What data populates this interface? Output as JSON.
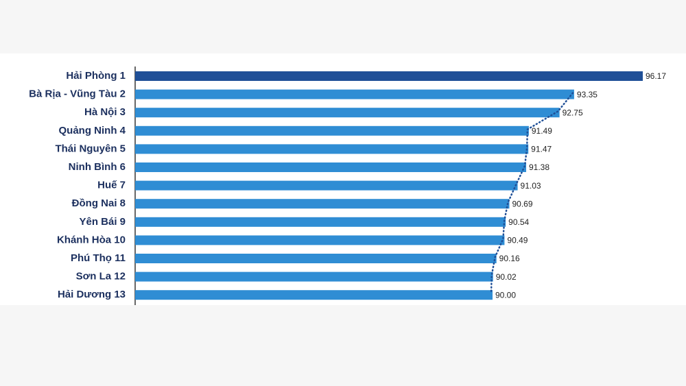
{
  "chart_data": {
    "type": "bar",
    "orientation": "horizontal",
    "categories": [
      "Hải Phòng  1",
      "Bà Rịa - Vũng Tàu  2",
      "Hà Nội  3",
      "Quảng Ninh  4",
      "Thái Nguyên  5",
      "Ninh Bình  6",
      "Huế  7",
      "Đồng Nai  8",
      "Yên Bái  9",
      "Khánh Hòa  10",
      "Phú Thọ 11",
      "Sơn La 12",
      "Hải Dương 13"
    ],
    "values": [
      96.17,
      93.35,
      92.75,
      91.49,
      91.47,
      91.38,
      91.03,
      90.69,
      90.54,
      90.49,
      90.16,
      90.02,
      90.0
    ],
    "value_labels": [
      "96.17",
      "93.35",
      "92.75",
      "91.49",
      "91.47",
      "91.38",
      "91.03",
      "90.69",
      "90.54",
      "90.49",
      "90.16",
      "90.02",
      "90.00"
    ],
    "colors": [
      "#1f4f97",
      "#2f8dd4",
      "#2f8dd4",
      "#2f8dd4",
      "#2f8dd4",
      "#2f8dd4",
      "#2f8dd4",
      "#2f8dd4",
      "#2f8dd4",
      "#2f8dd4",
      "#2f8dd4",
      "#2f8dd4",
      "#2f8dd4"
    ],
    "trend_line_color": "#1f4f97"
  }
}
